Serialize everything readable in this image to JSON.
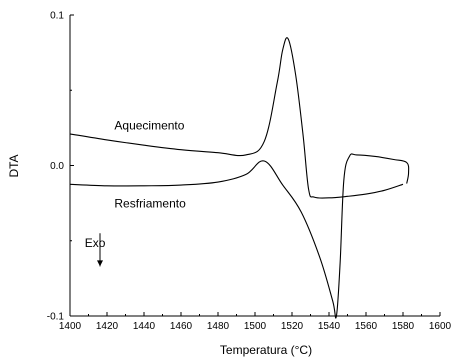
{
  "chart_data": {
    "type": "line",
    "title": "",
    "xlabel": "Temperatura (°C)",
    "ylabel": "DTA",
    "xlim": [
      1400,
      1600
    ],
    "ylim": [
      -0.1,
      0.1
    ],
    "x_ticks": [
      1400,
      1420,
      1440,
      1460,
      1480,
      1500,
      1520,
      1540,
      1560,
      1580,
      1600
    ],
    "y_ticks": [
      -0.1,
      0.0,
      0.1
    ],
    "y_tick_labels": [
      "-0.1",
      "0.0",
      "0.1"
    ],
    "grid": false,
    "series": [
      {
        "name": "Aquecimento",
        "x": [
          1400,
          1420,
          1440,
          1460,
          1480,
          1495,
          1505,
          1512,
          1515,
          1518,
          1522,
          1526,
          1529,
          1532,
          1540,
          1550,
          1560,
          1570,
          1580
        ],
        "y": [
          0.021,
          0.017,
          0.0135,
          0.0105,
          0.0085,
          0.007,
          0.016,
          0.055,
          0.077,
          0.084,
          0.06,
          0.02,
          -0.016,
          -0.021,
          -0.0215,
          -0.0205,
          -0.019,
          -0.0165,
          -0.0125
        ]
      },
      {
        "name": "Resfriamento",
        "x": [
          1400,
          1420,
          1440,
          1460,
          1480,
          1495,
          1505,
          1515,
          1525,
          1535,
          1542,
          1544,
          1546,
          1548,
          1551,
          1555,
          1565,
          1575,
          1582,
          1583,
          1582
        ],
        "y": [
          -0.0125,
          -0.0135,
          -0.0135,
          -0.013,
          -0.011,
          -0.006,
          0.003,
          -0.013,
          -0.031,
          -0.061,
          -0.09,
          -0.1,
          -0.065,
          -0.01,
          0.006,
          0.007,
          0.006,
          0.004,
          0.002,
          -0.005,
          -0.012
        ]
      }
    ],
    "annotations": [
      {
        "text": "Aquecimento",
        "x": 1424,
        "y": 0.024
      },
      {
        "text": "Resfriamento",
        "x": 1424,
        "y": -0.028
      },
      {
        "text": "Exo",
        "x": 1408,
        "y": -0.054
      }
    ]
  }
}
